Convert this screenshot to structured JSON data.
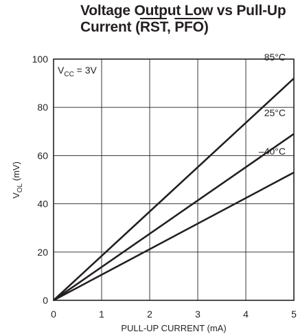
{
  "chart_data": {
    "type": "line",
    "title_line1": "Voltage Output Low vs Pull-Up",
    "title_line2_prefix": "Current (",
    "title_rst": "RST",
    "title_sep": ", ",
    "title_pfo": "PFO",
    "title_suffix": ")",
    "xlabel": "PULL-UP CURRENT (mA)",
    "ylabel_main": "V",
    "ylabel_sub": "OL",
    "ylabel_unit": " (mV)",
    "annotation_main": "V",
    "annotation_sub": "CC",
    "annotation_rest": " = 3V",
    "xlim": [
      0,
      5
    ],
    "ylim": [
      0,
      100
    ],
    "xticks": [
      "0",
      "1",
      "2",
      "3",
      "4",
      "5"
    ],
    "yticks": [
      "0",
      "20",
      "40",
      "60",
      "80",
      "100"
    ],
    "grid": true,
    "series": [
      {
        "name": "85°C",
        "x": [
          0,
          5
        ],
        "y": [
          0,
          92
        ]
      },
      {
        "name": "25°C",
        "x": [
          0,
          5
        ],
        "y": [
          0,
          69
        ]
      },
      {
        "name": "–40°C",
        "x": [
          0,
          5
        ],
        "y": [
          0,
          53
        ]
      }
    ]
  }
}
